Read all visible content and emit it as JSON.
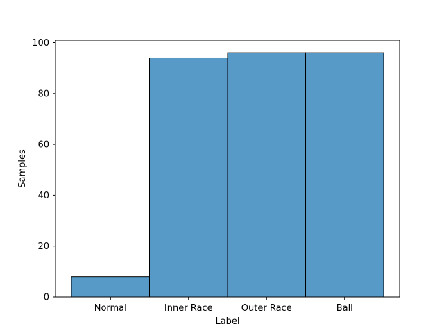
{
  "chart_data": {
    "type": "bar",
    "categories": [
      "Normal",
      "Inner Race",
      "Outer Race",
      "Ball"
    ],
    "values": [
      8,
      94,
      96,
      96
    ],
    "xlabel": "Label",
    "ylabel": "Samples",
    "ylim": [
      0,
      100
    ],
    "yticks": [
      0,
      20,
      40,
      60,
      80,
      100
    ],
    "ytick_labels": [
      "0",
      "20",
      "40",
      "60",
      "80",
      "100"
    ],
    "grid": false,
    "bar_color": "#5799c7",
    "edge_color": "#000000"
  }
}
